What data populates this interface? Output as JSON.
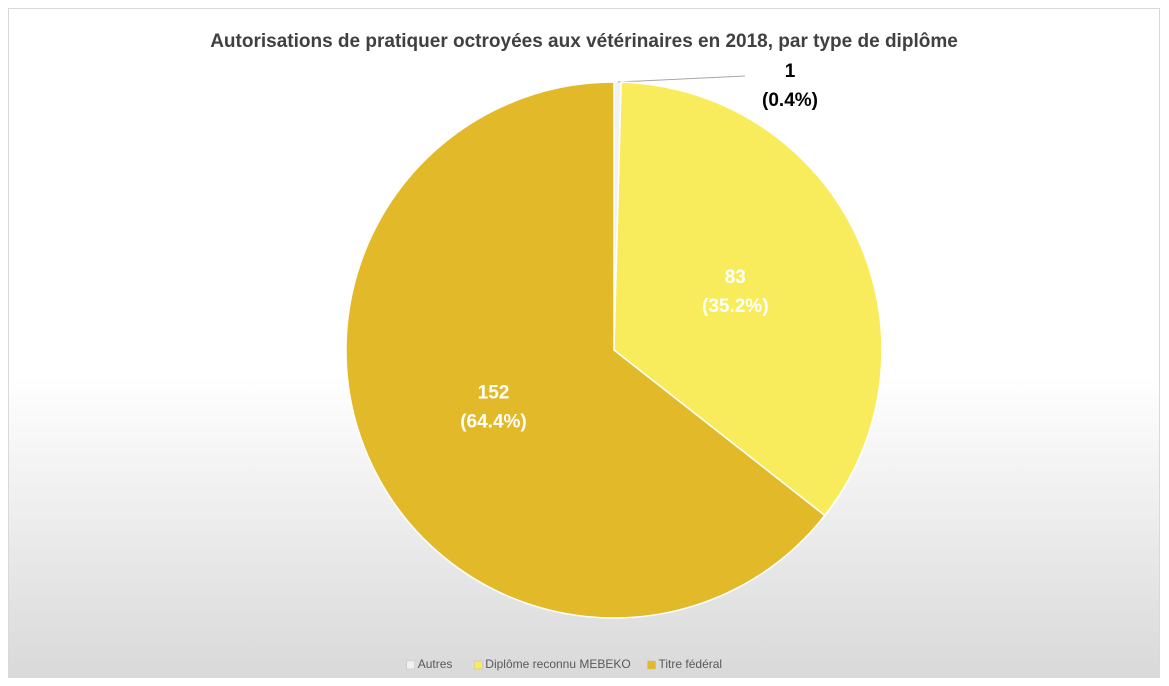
{
  "chart_data": {
    "type": "pie",
    "title": "Autorisations de pratiquer octroyées aux vétérinaires en 2018, par type de diplôme",
    "categories": [
      "Autres",
      "Diplôme reconnu MEBEKO",
      "Titre fédéral"
    ],
    "values": [
      1,
      83,
      152
    ],
    "percent_labels": [
      "(0.4%)",
      "(35.2%)",
      "(64.4%)"
    ],
    "colors": [
      "#f2f2f2",
      "#f9ec5c",
      "#e2b928"
    ],
    "legend": "bottom"
  }
}
